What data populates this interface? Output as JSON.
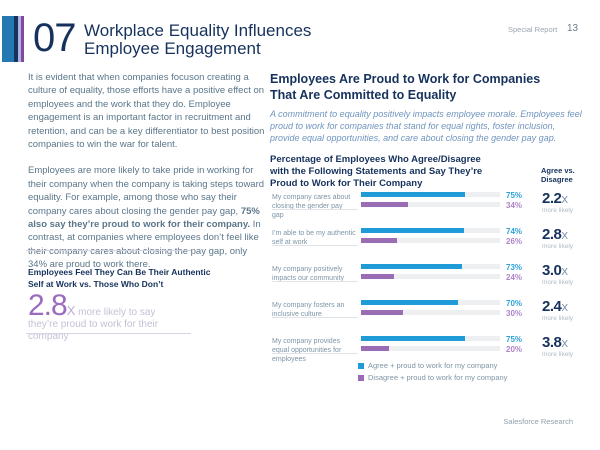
{
  "header": {
    "number": "07",
    "title_line1": "Workplace Equality Influences",
    "title_line2": "Employee Engagement",
    "report_label": "Special Report",
    "page_number": "13",
    "accent_colors": [
      "#2479b3",
      "#17335c",
      "#a9b4e4",
      "#84479c"
    ]
  },
  "left_column": {
    "paragraph1": "It is evident that when companies focuson creating a culture of equality, those efforts have a positive effect on employees and the work that they do. Employee engagement is an important factor in recruitment and retention, and can be a key differentiator to best position companies to win the war for talent.",
    "paragraph2_part1": "Employees are more likely to take pride in working for their company when the company is taking steps toward equality. For example, among those who say their company cares about closing the gender pay gap, ",
    "paragraph2_bold": "75% also say they’re proud to work for their company.",
    "paragraph2_part2": " In contrast, at companies where employees don’t feel like their company cares about closing the pay gap, only 34% are proud to work there.",
    "callout": {
      "heading_line1": "Employees Feel They Can Be Their Authentic",
      "heading_line2": "Self at Work vs. Those Who Don’t",
      "stat_value": "2.8",
      "stat_x": "X",
      "stat_text": " more likely to say they’re proud to work for their company"
    }
  },
  "right_column": {
    "heading": "Employees Are Proud to Work for Companies That Are Committed to Equality",
    "subtext": "A commitment to equality positively impacts employee morale. Employees feel proud to work for companies that stand for equal rights, foster inclusion, provide equal opportunities, and care about closing the gender pay gap.",
    "chart_title_line1": "Percentage of Employees Who Agree/Disagree",
    "chart_title_line2": "with the Following Statements and Say They’re",
    "chart_title_line3": "Proud to Work for Their Company",
    "agree_vs_line1": "Agree vs.",
    "agree_vs_line2": "Disagree"
  },
  "chart_data": {
    "type": "bar",
    "orientation": "horizontal",
    "xlim": [
      0,
      100
    ],
    "title": "Percentage of Employees Who Agree/Disagree with the Following Statements and Say They're Proud to Work for Their Company",
    "categories": [
      "My company cares about closing the gender pay gap",
      "I’m able to be my authentic self at work",
      "My company positively impacts our community",
      "My company fosters an inclusive culture",
      "My company provides equal opportunities for employees"
    ],
    "series": [
      {
        "name": "Agree + proud to work for my company",
        "color": "#1f9cd7",
        "values": [
          75,
          74,
          73,
          70,
          75
        ]
      },
      {
        "name": "Disagree + proud to work for my company",
        "color": "#9a6cb4",
        "values": [
          34,
          26,
          24,
          30,
          20
        ]
      }
    ],
    "rows": [
      {
        "label": "My company cares about closing the gender pay gap",
        "agree_pct": 75,
        "agree_label": "75%",
        "disagree_pct": 34,
        "disagree_label": "34%",
        "mult": "2.2",
        "mult_x": "X",
        "more": "more likely"
      },
      {
        "label": "I’m able to be my authentic self at work",
        "agree_pct": 74,
        "agree_label": "74%",
        "disagree_pct": 26,
        "disagree_label": "26%",
        "mult": "2.8",
        "mult_x": "X",
        "more": "more likely"
      },
      {
        "label": "My company positively impacts our community",
        "agree_pct": 73,
        "agree_label": "73%",
        "disagree_pct": 24,
        "disagree_label": "24%",
        "mult": "3.0",
        "mult_x": "X",
        "more": "more likely"
      },
      {
        "label": "My company fosters an inclusive culture",
        "agree_pct": 70,
        "agree_label": "70%",
        "disagree_pct": 30,
        "disagree_label": "30%",
        "mult": "2.4",
        "mult_x": "X",
        "more": "more likely"
      },
      {
        "label": "My company provides equal opportunities for employees",
        "agree_pct": 75,
        "agree_label": "75%",
        "disagree_pct": 20,
        "disagree_label": "20%",
        "mult": "3.8",
        "mult_x": "X",
        "more": "more likely"
      }
    ],
    "legend": [
      {
        "label": "Agree + proud to work for my company",
        "color": "#1f9cd7"
      },
      {
        "label": "Disagree + proud to work for my company",
        "color": "#9a6cb4"
      }
    ],
    "legend_position": "bottom"
  },
  "footer": {
    "source": "Salesforce Research"
  }
}
